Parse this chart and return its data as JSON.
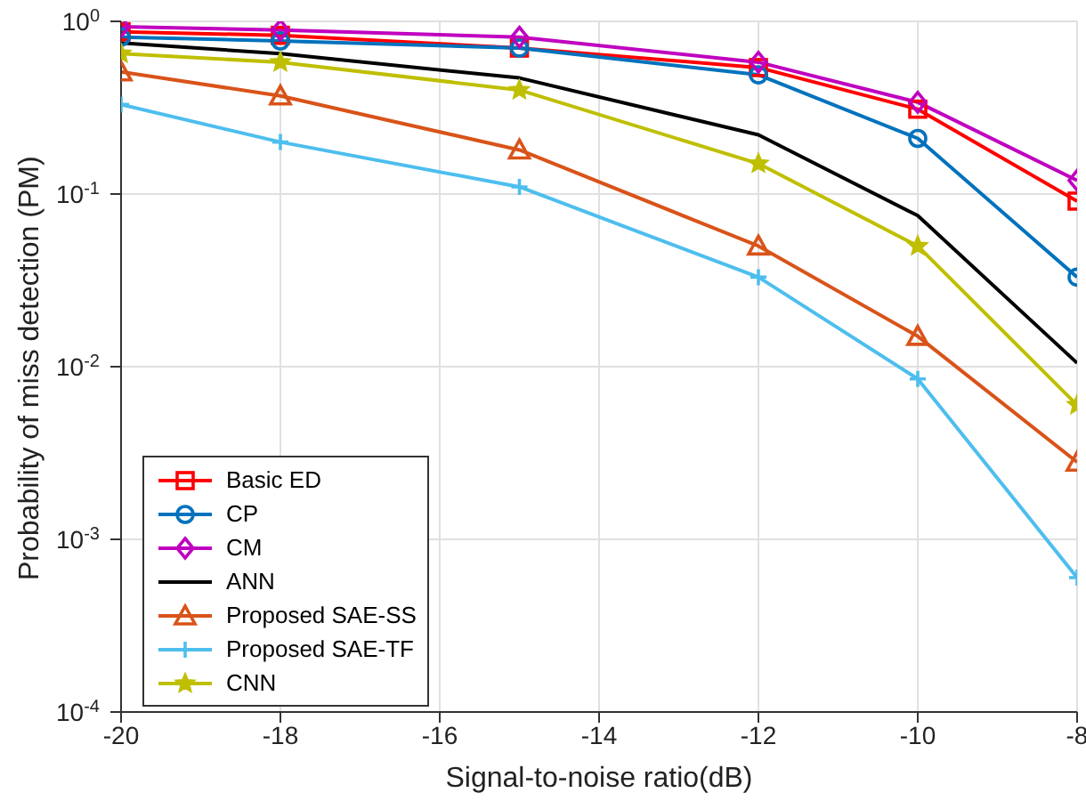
{
  "chart_data": {
    "type": "line",
    "xlabel": "Signal-to-noise ratio(dB)",
    "ylabel": "Probability of miss detection (PM)",
    "x": [
      -20,
      -18,
      -15,
      -12,
      -10,
      -8
    ],
    "xlim": [
      -20,
      -8
    ],
    "xticks": [
      -20,
      -18,
      -16,
      -14,
      -12,
      -10,
      -8
    ],
    "ylim": [
      0.0001,
      1
    ],
    "log": true,
    "yticks": [
      {
        "value": 0.0001,
        "label": "10$^{-4}$"
      },
      {
        "value": 0.001,
        "label": "10$^{-3}$"
      },
      {
        "value": 0.01,
        "label": "10$^{-2}$"
      },
      {
        "value": 0.1,
        "label": "10$^{-1}$"
      },
      {
        "value": 1,
        "label": "10$^{0}$"
      }
    ],
    "grid": true,
    "legend": "bottom left",
    "series": [
      {
        "name": "Basic ED",
        "color": "#ff0000",
        "marker": "square",
        "values": [
          0.87,
          0.83,
          0.7,
          0.54,
          0.31,
          0.091
        ]
      },
      {
        "name": "CP",
        "color": "#0072bd",
        "marker": "circle",
        "values": [
          0.81,
          0.77,
          0.7,
          0.49,
          0.21,
          0.033
        ]
      },
      {
        "name": "CM",
        "color": "#c000c0",
        "marker": "diamond",
        "values": [
          0.93,
          0.89,
          0.81,
          0.58,
          0.34,
          0.12
        ]
      },
      {
        "name": "ANN",
        "color": "#000000",
        "marker": "none",
        "values": [
          0.75,
          0.65,
          0.47,
          0.22,
          0.075,
          0.0105
        ]
      },
      {
        "name": "Proposed SAE-SS",
        "color": "#d95319",
        "marker": "triangle",
        "values": [
          0.51,
          0.37,
          0.18,
          0.05,
          0.015,
          0.0028
        ]
      },
      {
        "name": "Proposed SAE-TF",
        "color": "#4dbeee",
        "marker": "cross",
        "values": [
          0.33,
          0.2,
          0.11,
          0.033,
          0.0085,
          0.0006
        ]
      },
      {
        "name": "CNN",
        "color": "#bfbf00",
        "marker": "star",
        "values": [
          0.65,
          0.58,
          0.4,
          0.15,
          0.05,
          0.006
        ]
      }
    ]
  }
}
